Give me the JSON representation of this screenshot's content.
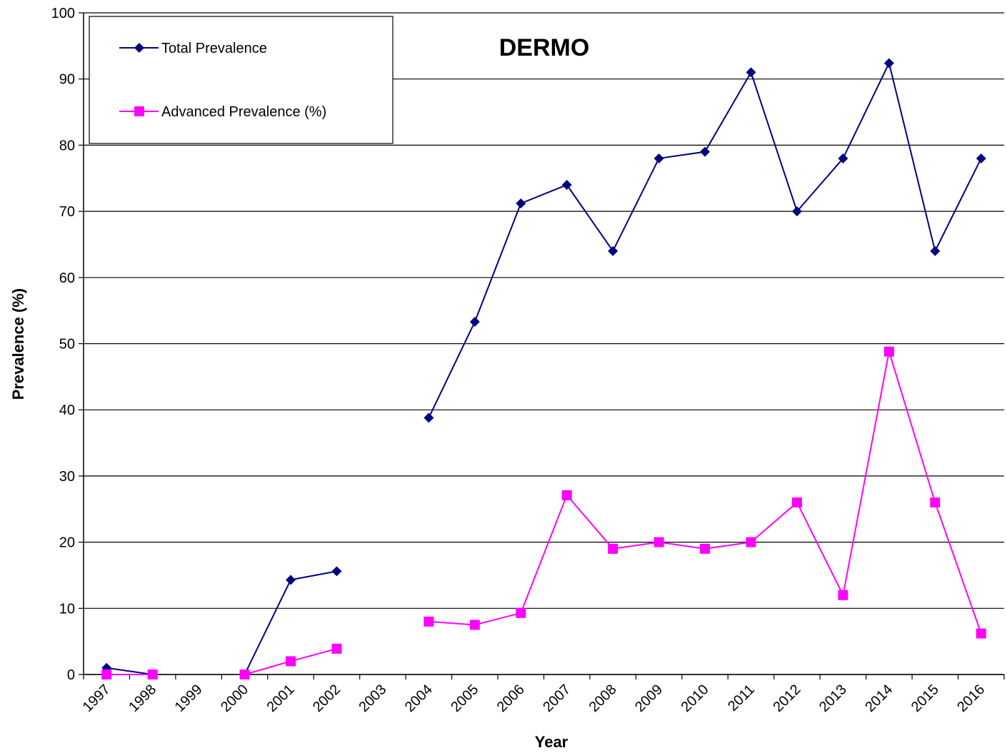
{
  "chart_data": {
    "type": "line",
    "title": "DERMO",
    "x_label": "Year",
    "y_label": "Prevalence (%)",
    "categories": [
      "1997",
      "1998",
      "1999",
      "2000",
      "2001",
      "2002",
      "2003",
      "2004",
      "2005",
      "2006",
      "2007",
      "2008",
      "2009",
      "2010",
      "2011",
      "2012",
      "2013",
      "2014",
      "2015",
      "2016"
    ],
    "series": [
      {
        "name": "Total Prevalence",
        "color": "#000080",
        "marker": "diamond",
        "values": [
          1.0,
          0,
          null,
          0,
          14.3,
          15.6,
          null,
          38.8,
          53.3,
          71.2,
          74,
          64,
          78,
          79,
          91,
          70,
          78,
          92.4,
          64,
          78
        ]
      },
      {
        "name": "Advanced Prevalence (%)",
        "color": "#ff00ff",
        "marker": "square",
        "values": [
          0,
          0,
          null,
          0,
          2,
          3.9,
          null,
          8,
          7.5,
          9.3,
          27.1,
          19,
          20,
          19,
          20,
          26,
          12,
          48.8,
          26,
          6.2
        ]
      }
    ],
    "ylim": [
      0,
      100
    ],
    "yticks": [
      0,
      10,
      20,
      30,
      40,
      50,
      60,
      70,
      80,
      90,
      100
    ],
    "grid": true
  }
}
